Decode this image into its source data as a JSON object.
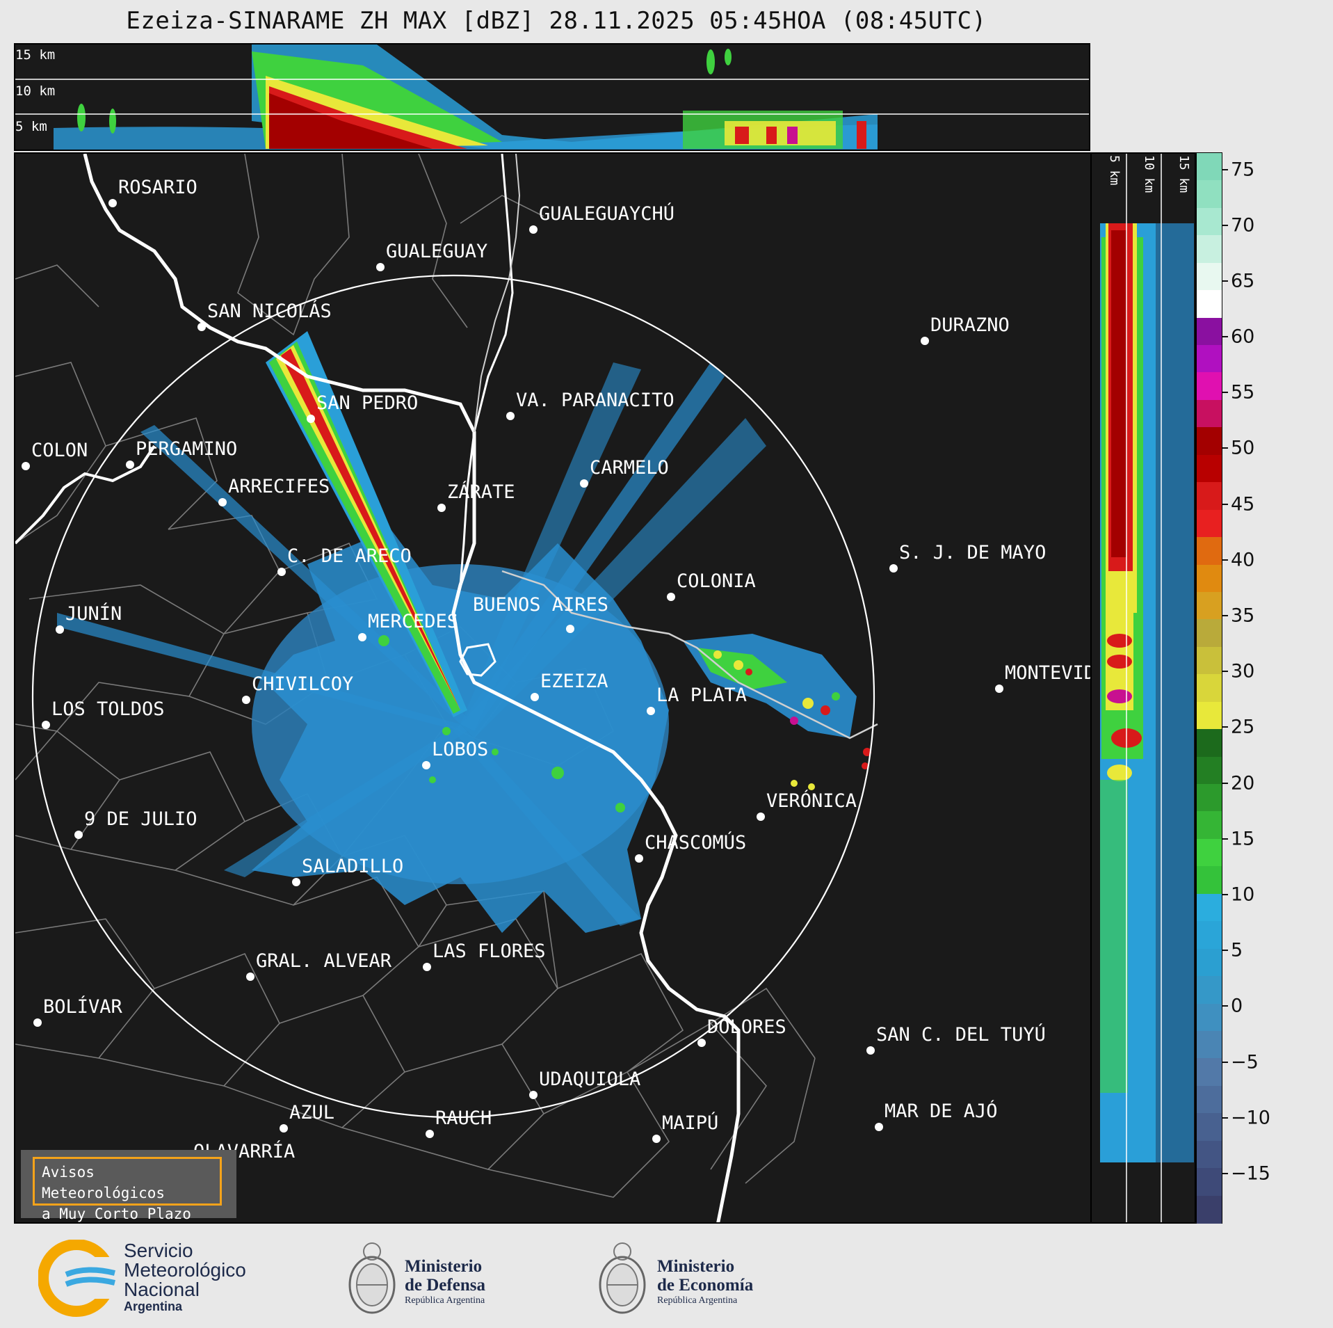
{
  "title": "Ezeiza-SINARAME ZH MAX [dBZ] 28.11.2025 05:45HOA (08:45UTC)",
  "top_strip": {
    "altitude_labels": [
      "15 km",
      "10 km",
      "5 km"
    ]
  },
  "side_strip": {
    "altitude_labels": [
      "5 km",
      "10 km",
      "15 km"
    ]
  },
  "map": {
    "cities": [
      {
        "name": "ROSARIO"
      },
      {
        "name": "GUALEGUAYCHÚ"
      },
      {
        "name": "GUALEGUAY"
      },
      {
        "name": "SAN NICOLÁS"
      },
      {
        "name": "DURAZNO"
      },
      {
        "name": "SAN PEDRO"
      },
      {
        "name": "VA. PARANACITO"
      },
      {
        "name": "COLON"
      },
      {
        "name": "PERGAMINO"
      },
      {
        "name": "CARMELO"
      },
      {
        "name": "ARRECIFES"
      },
      {
        "name": "ZÁRATE"
      },
      {
        "name": "S. J. DE MAYO"
      },
      {
        "name": "C. DE ARECO"
      },
      {
        "name": "COLONIA"
      },
      {
        "name": "JUNÍN"
      },
      {
        "name": "BUENOS AIRES"
      },
      {
        "name": "MERCEDES"
      },
      {
        "name": "MONTEVIDEO"
      },
      {
        "name": "EZEIZA"
      },
      {
        "name": "CHIVILCOY"
      },
      {
        "name": "LA PLATA"
      },
      {
        "name": "LOS TOLDOS"
      },
      {
        "name": "LOBOS"
      },
      {
        "name": "VERÓNICA"
      },
      {
        "name": "9 DE JULIO"
      },
      {
        "name": "CHASCOMÚS"
      },
      {
        "name": "SALADILLO"
      },
      {
        "name": "GRAL. ALVEAR"
      },
      {
        "name": "LAS FLORES"
      },
      {
        "name": "BOLÍVAR"
      },
      {
        "name": "DOLORES"
      },
      {
        "name": "SAN C. DEL TUYÚ"
      },
      {
        "name": "UDAQUIOLA"
      },
      {
        "name": "AZUL"
      },
      {
        "name": "RAUCH"
      },
      {
        "name": "MAR DE AJÓ"
      },
      {
        "name": "OLAVARRÍA"
      },
      {
        "name": "MAIPÚ"
      }
    ],
    "avisos_line1": "Avisos Meteorológicos",
    "avisos_line2": "a Muy Corto Plazo"
  },
  "colorbar": {
    "unit": "dBZ",
    "ticks": [
      "75",
      "70",
      "65",
      "60",
      "55",
      "50",
      "45",
      "40",
      "35",
      "30",
      "25",
      "20",
      "15",
      "10",
      "5",
      "0",
      "−5",
      "−10",
      "−15"
    ]
  },
  "footer": {
    "smn_line1": "Servicio",
    "smn_line2": "Meteorológico",
    "smn_line3": "Nacional",
    "smn_line4": "Argentina",
    "defensa_line1": "Ministerio",
    "defensa_line2": "de Defensa",
    "defensa_line3": "República Argentina",
    "economia_line1": "Ministerio",
    "economia_line2": "de Economía",
    "economia_line3": "República Argentina"
  }
}
